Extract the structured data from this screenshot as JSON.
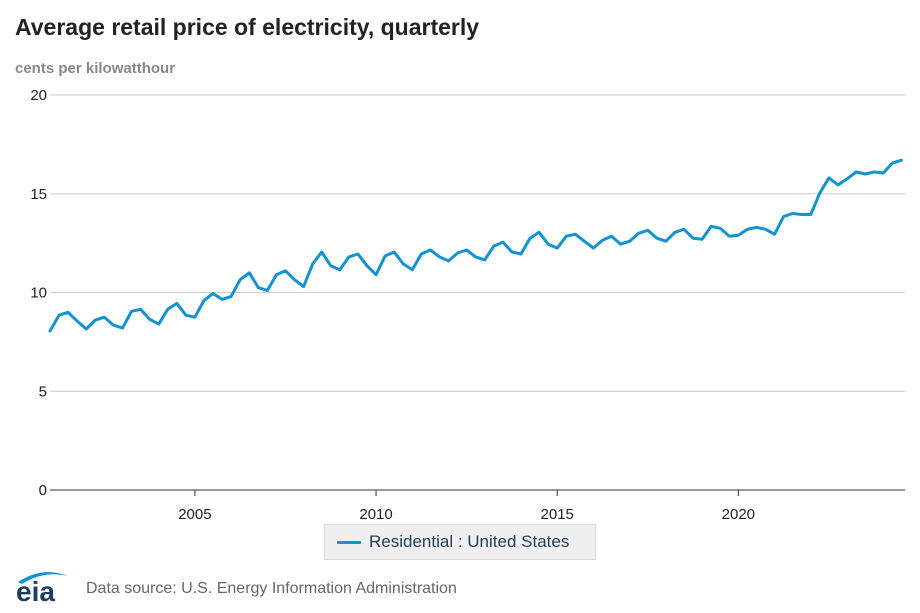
{
  "logo_text": "eia",
  "source": "Data source: U.S. Energy Information Administration",
  "colors": {
    "series": "#1392d3",
    "grid": "#cccccc",
    "axis": "#333333",
    "logo": "#1f3d5c"
  },
  "chart_data": {
    "type": "line",
    "title": "Average retail price of electricity, quarterly",
    "subtitle": "cents per kilowatthour",
    "xlabel": "",
    "ylabel": "cents per kilowatthour",
    "xlim": [
      2001,
      2024.6
    ],
    "ylim": [
      0,
      20
    ],
    "yticks": [
      0,
      5,
      10,
      15,
      20
    ],
    "xticks": [
      2005,
      2010,
      2015,
      2020
    ],
    "grid": true,
    "legend_position": "bottom-center",
    "series": [
      {
        "name": "Residential : United States",
        "start_year": 2001,
        "step": 0.25,
        "values": [
          8.05,
          8.85,
          9.0,
          8.55,
          8.15,
          8.6,
          8.75,
          8.35,
          8.2,
          9.05,
          9.15,
          8.65,
          8.4,
          9.15,
          9.45,
          8.85,
          8.75,
          9.6,
          9.95,
          9.65,
          9.8,
          10.65,
          11.0,
          10.25,
          10.1,
          10.9,
          11.1,
          10.65,
          10.3,
          11.45,
          12.05,
          11.35,
          11.15,
          11.8,
          11.95,
          11.35,
          10.9,
          11.85,
          12.05,
          11.45,
          11.15,
          11.95,
          12.15,
          11.8,
          11.6,
          12.0,
          12.15,
          11.8,
          11.65,
          12.35,
          12.55,
          12.05,
          11.95,
          12.75,
          13.05,
          12.45,
          12.25,
          12.85,
          12.95,
          12.6,
          12.25,
          12.65,
          12.85,
          12.45,
          12.6,
          13.0,
          13.15,
          12.75,
          12.6,
          13.05,
          13.2,
          12.75,
          12.7,
          13.35,
          13.25,
          12.85,
          12.9,
          13.2,
          13.3,
          13.2,
          12.95,
          13.85,
          14.0,
          13.95,
          13.95,
          15.05,
          15.8,
          15.45,
          15.75,
          16.1,
          16.0,
          16.1,
          16.05,
          16.55,
          16.7
        ]
      }
    ]
  }
}
